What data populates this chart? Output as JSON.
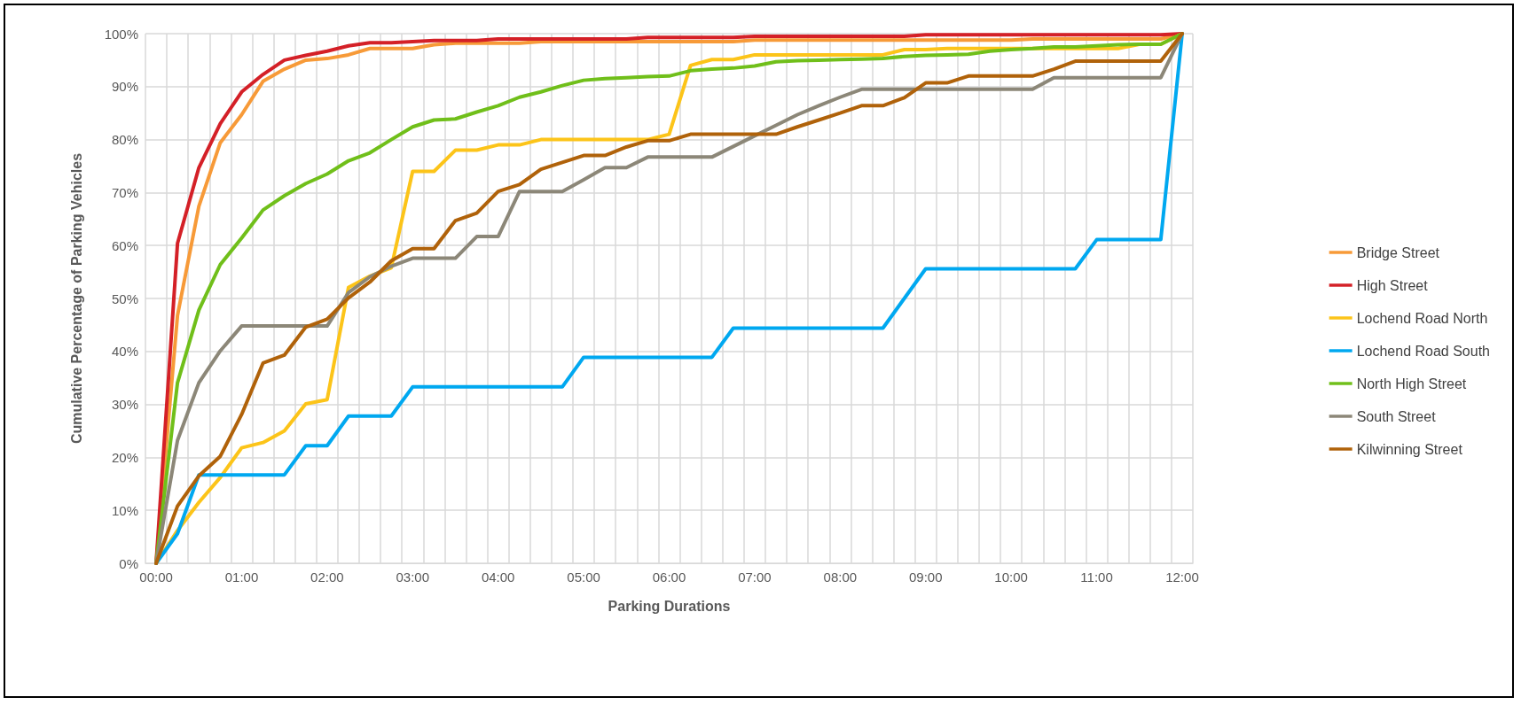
{
  "chart_data": {
    "type": "line",
    "xlabel": "Parking Durations",
    "ylabel": "Cumulative Percentage of Parking Vehicles",
    "categories": [
      "00:00",
      null,
      null,
      null,
      "01:00",
      null,
      null,
      null,
      "02:00",
      null,
      null,
      null,
      "03:00",
      null,
      null,
      null,
      "04:00",
      null,
      null,
      null,
      "05:00",
      null,
      null,
      null,
      "06:00",
      null,
      null,
      null,
      "07:00",
      null,
      null,
      null,
      "08:00",
      null,
      null,
      null,
      "09:00",
      null,
      null,
      null,
      "10:00",
      null,
      null,
      null,
      "11:00",
      null,
      null,
      null,
      "12:00"
    ],
    "series": [
      {
        "name": "Bridge Street",
        "color": "#f79a38",
        "values": [
          0,
          46.8,
          67.4,
          79.4,
          84.7,
          91,
          93.3,
          95,
          95.3,
          96,
          97.2,
          97.2,
          97.2,
          97.9,
          98.2,
          98.2,
          98.2,
          98.2,
          98.5,
          98.5,
          98.5,
          98.5,
          98.5,
          98.5,
          98.5,
          98.5,
          98.5,
          98.5,
          98.8,
          98.8,
          98.8,
          98.8,
          98.8,
          98.8,
          98.8,
          98.8,
          98.8,
          98.8,
          98.8,
          98.8,
          98.8,
          99,
          99,
          99,
          99,
          99,
          99,
          99,
          100
        ]
      },
      {
        "name": "High Street",
        "color": "#d42027",
        "values": [
          0,
          60.4,
          74.7,
          83,
          89,
          92.3,
          95,
          95.9,
          96.7,
          97.7,
          98.3,
          98.3,
          98.5,
          98.7,
          98.7,
          98.7,
          99,
          99,
          99,
          99,
          99,
          99,
          99,
          99.3,
          99.3,
          99.3,
          99.3,
          99.3,
          99.5,
          99.5,
          99.5,
          99.5,
          99.5,
          99.5,
          99.5,
          99.5,
          99.8,
          99.8,
          99.8,
          99.8,
          99.8,
          99.8,
          99.8,
          99.8,
          99.8,
          99.8,
          99.8,
          99.8,
          100
        ]
      },
      {
        "name": "Lochend Road North",
        "color": "#fcc419",
        "values": [
          0,
          6.2,
          11.5,
          16.2,
          21.8,
          22.8,
          25,
          30.1,
          30.9,
          52.1,
          54.2,
          55.8,
          74,
          74,
          78,
          78,
          79,
          79,
          80,
          80,
          80,
          80,
          80,
          80,
          81,
          94,
          95.1,
          95.1,
          96,
          96,
          96,
          96,
          96,
          96,
          96,
          97,
          97,
          97.2,
          97.2,
          97.2,
          97.2,
          97.2,
          97.2,
          97.2,
          97.2,
          97.2,
          98,
          98,
          100
        ]
      },
      {
        "name": "Lochend Road South",
        "color": "#00a8f0",
        "values": [
          0,
          5.6,
          16.7,
          16.7,
          16.7,
          16.7,
          16.7,
          22.2,
          22.2,
          27.8,
          27.8,
          27.8,
          33.3,
          33.3,
          33.3,
          33.3,
          33.3,
          33.3,
          33.3,
          33.3,
          38.9,
          38.9,
          38.9,
          38.9,
          38.9,
          38.9,
          38.9,
          44.4,
          44.4,
          44.4,
          44.4,
          44.4,
          44.4,
          44.4,
          44.4,
          50,
          55.6,
          55.6,
          55.6,
          55.6,
          55.6,
          55.6,
          55.6,
          55.6,
          61.1,
          61.1,
          61.1,
          61.1,
          100
        ]
      },
      {
        "name": "North High Street",
        "color": "#70bf1a",
        "values": [
          0,
          34.1,
          47.8,
          56.4,
          61.4,
          66.7,
          69.4,
          71.7,
          73.5,
          76,
          77.5,
          80,
          82.4,
          83.7,
          83.9,
          85.2,
          86.4,
          88,
          89,
          90.2,
          91.2,
          91.5,
          91.7,
          91.9,
          92,
          93,
          93.3,
          93.5,
          93.9,
          94.7,
          94.9,
          95,
          95.1,
          95.2,
          95.3,
          95.7,
          95.9,
          96,
          96.1,
          96.7,
          97,
          97.2,
          97.5,
          97.5,
          97.7,
          97.9,
          98,
          98,
          100
        ]
      },
      {
        "name": "South Street",
        "color": "#8c8778",
        "values": [
          0,
          23.2,
          34.1,
          40.1,
          44.8,
          44.8,
          44.8,
          44.8,
          44.8,
          51.1,
          54.1,
          56.1,
          57.6,
          57.6,
          57.6,
          61.7,
          61.7,
          70.2,
          70.2,
          70.2,
          72.4,
          74.7,
          74.7,
          76.7,
          76.7,
          76.7,
          76.7,
          78.7,
          80.7,
          82.7,
          84.7,
          86.4,
          88,
          89.5,
          89.5,
          89.5,
          89.5,
          89.5,
          89.5,
          89.5,
          89.5,
          89.5,
          91.7,
          91.7,
          91.7,
          91.7,
          91.7,
          91.7,
          100
        ]
      },
      {
        "name": "Kilwinning Street",
        "color": "#b0620a",
        "values": [
          0,
          10.8,
          16.5,
          20.2,
          28.1,
          37.8,
          39.3,
          44.6,
          46.1,
          50.1,
          53.1,
          57.1,
          59.4,
          59.4,
          64.7,
          66.1,
          70.2,
          71.5,
          74.4,
          75.7,
          77,
          77,
          78.6,
          79.8,
          79.8,
          81,
          81,
          81,
          81,
          81,
          82.4,
          83.7,
          85,
          86.4,
          86.4,
          87.9,
          90.7,
          90.7,
          92,
          92,
          92,
          92,
          93.3,
          94.8,
          94.8,
          94.8,
          94.8,
          94.8,
          100
        ]
      }
    ],
    "ylim": [
      0,
      100
    ],
    "yticks": [
      {
        "value": 0,
        "label": "0%"
      },
      {
        "value": 10,
        "label": "10%"
      },
      {
        "value": 20,
        "label": "20%"
      },
      {
        "value": 30,
        "label": "30%"
      },
      {
        "value": 40,
        "label": "40%"
      },
      {
        "value": 50,
        "label": "50%"
      },
      {
        "value": 60,
        "label": "60%"
      },
      {
        "value": 70,
        "label": "70%"
      },
      {
        "value": 80,
        "label": "80%"
      },
      {
        "value": 90,
        "label": "90%"
      },
      {
        "value": 100,
        "label": "100%"
      }
    ],
    "grid": true,
    "legend": "right",
    "marker": "none",
    "line_style": "solid"
  }
}
